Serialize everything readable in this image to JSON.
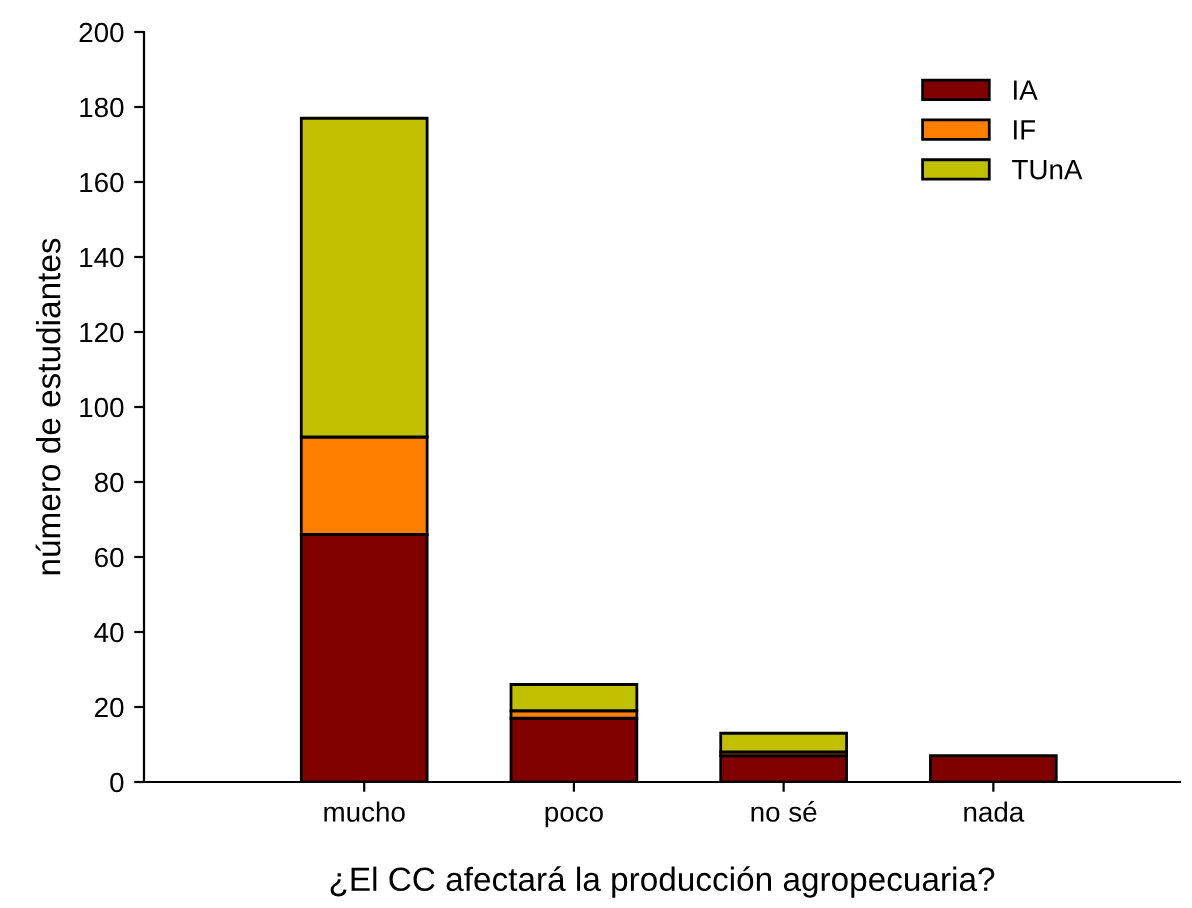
{
  "chart_data": {
    "type": "bar",
    "stacked": true,
    "xlabel": "¿El CC afectará la producción agropecuaria?",
    "ylabel": "número de estudiantes",
    "categories": [
      "mucho",
      "poco",
      "no sé",
      "nada"
    ],
    "series": [
      {
        "name": "IA",
        "color": "#800000",
        "values": [
          66,
          17,
          7,
          7
        ]
      },
      {
        "name": "IF",
        "color": "#ff8000",
        "values": [
          26,
          2,
          1,
          null
        ]
      },
      {
        "name": "TUnA",
        "color": "#c0c000",
        "values": [
          85,
          7,
          5,
          null
        ]
      }
    ],
    "ylim": [
      0,
      200
    ],
    "yticks": [
      0,
      20,
      40,
      60,
      80,
      100,
      120,
      140,
      160,
      180,
      200
    ],
    "legend": "top right",
    "grid": false
  }
}
